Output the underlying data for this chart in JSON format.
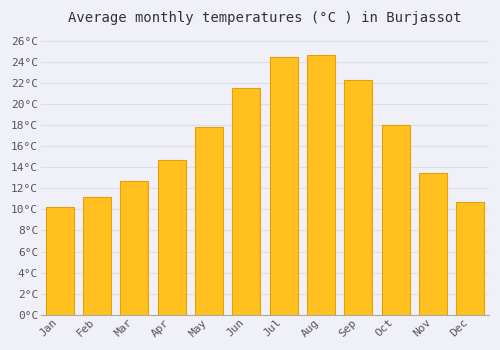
{
  "title": "Average monthly temperatures (°C ) in Burjassot",
  "months": [
    "Jan",
    "Feb",
    "Mar",
    "Apr",
    "May",
    "Jun",
    "Jul",
    "Aug",
    "Sep",
    "Oct",
    "Nov",
    "Dec"
  ],
  "values": [
    10.2,
    11.2,
    12.7,
    14.7,
    17.8,
    21.5,
    24.5,
    24.7,
    22.3,
    18.0,
    13.5,
    10.7
  ],
  "bar_color": "#FFC020",
  "bar_edge_color": "#E8A000",
  "background_color": "#F0F0F8",
  "plot_bg_color": "#F0F0F8",
  "grid_color": "#DDDDEE",
  "ylim": [
    0,
    27
  ],
  "yticks": [
    0,
    2,
    4,
    6,
    8,
    10,
    12,
    14,
    16,
    18,
    20,
    22,
    24,
    26
  ],
  "ytick_labels": [
    "0°C",
    "2°C",
    "4°C",
    "6°C",
    "8°C",
    "10°C",
    "12°C",
    "14°C",
    "16°C",
    "18°C",
    "20°C",
    "22°C",
    "24°C",
    "26°C"
  ],
  "title_fontsize": 10,
  "tick_fontsize": 8,
  "font_family": "monospace",
  "bar_width": 0.75
}
